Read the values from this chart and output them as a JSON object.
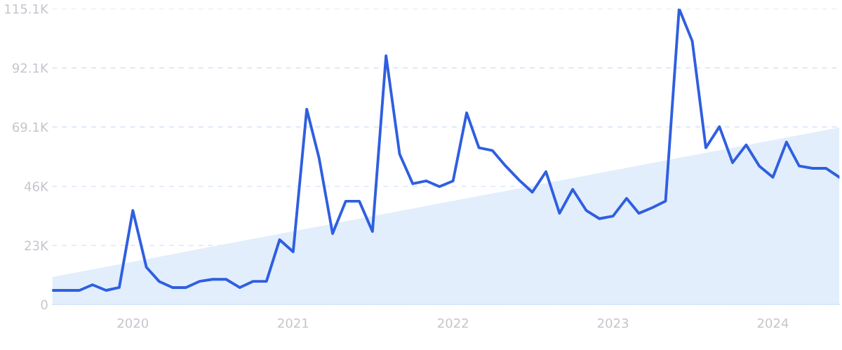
{
  "chart_data": {
    "type": "line",
    "x": [
      "2019-07",
      "2019-08",
      "2019-09",
      "2019-10",
      "2019-11",
      "2019-12",
      "2020-01",
      "2020-02",
      "2020-03",
      "2020-04",
      "2020-05",
      "2020-06",
      "2020-07",
      "2020-08",
      "2020-09",
      "2020-10",
      "2020-11",
      "2020-12",
      "2021-01",
      "2021-02",
      "2021-03",
      "2021-04",
      "2021-05",
      "2021-06",
      "2021-07",
      "2021-08",
      "2021-09",
      "2021-10",
      "2021-11",
      "2021-12",
      "2022-01",
      "2022-02",
      "2022-03",
      "2022-04",
      "2022-05",
      "2022-06",
      "2022-07",
      "2022-08",
      "2022-09",
      "2022-10",
      "2022-11",
      "2022-12",
      "2023-01",
      "2023-02",
      "2023-03",
      "2023-04",
      "2023-05",
      "2023-06",
      "2023-07",
      "2023-08",
      "2023-09",
      "2023-10",
      "2023-11",
      "2023-12",
      "2024-01",
      "2024-02",
      "2024-03",
      "2024-04",
      "2024-05",
      "2024-06"
    ],
    "series": [
      {
        "type": "area",
        "color": "#e2eefc",
        "x": [
          "2019-07",
          "2024-06"
        ],
        "values": [
          10.7,
          68.9
        ]
      },
      {
        "color": "#2f5fe0",
        "values": [
          5.5,
          5.5,
          5.5,
          7.7,
          5.5,
          6.6,
          36.6,
          14.5,
          9.0,
          6.6,
          6.6,
          9.0,
          9.8,
          9.8,
          6.6,
          9.0,
          9.0,
          25.2,
          20.5,
          76.0,
          57.1,
          27.6,
          40.2,
          40.2,
          28.4,
          96.8,
          58.5,
          47.0,
          48.1,
          45.9,
          48.1,
          74.6,
          61.0,
          59.9,
          53.9,
          48.4,
          43.7,
          51.7,
          35.5,
          44.8,
          36.6,
          33.4,
          34.4,
          41.3,
          35.5,
          37.7,
          40.2,
          115.1,
          102.5,
          61.0,
          69.2,
          55.2,
          62.1,
          53.9,
          49.5,
          63.2,
          53.9,
          53.0,
          53.0,
          49.5
        ]
      }
    ],
    "xlim": [
      "2019-07",
      "2024-06"
    ],
    "xticks": [
      "2020",
      "2021",
      "2022",
      "2023",
      "2024"
    ],
    "ylim": [
      0,
      115.1
    ],
    "yticks": [
      0,
      {
        "value": 23,
        "label": "23K"
      },
      {
        "value": 46,
        "label": "46K"
      },
      {
        "value": 69.1,
        "label": "69.1K"
      },
      {
        "value": 92.1,
        "label": "92.1K"
      },
      {
        "value": 115.1,
        "label": "115.1K"
      }
    ],
    "grid": "y",
    "line_style": "solid",
    "marker": "none"
  }
}
